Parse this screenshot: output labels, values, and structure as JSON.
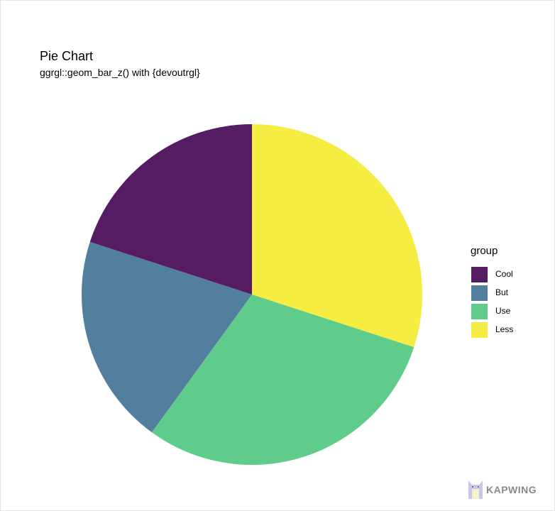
{
  "chart_data": {
    "type": "pie",
    "title": "Pie Chart",
    "subtitle": "ggrgl::geom_bar_z() with {devoutrgl}",
    "legend_title": "group",
    "legend_position": "right",
    "categories": [
      "Cool",
      "But",
      "Use",
      "Less"
    ],
    "values": [
      20,
      20,
      30,
      30
    ],
    "colors": [
      "#561C63",
      "#527F9E",
      "#5FCC8C",
      "#F6ED42"
    ],
    "start": "top",
    "direction": "counterclockwise-from-Cool"
  },
  "watermark": {
    "text": "KAPWING"
  }
}
